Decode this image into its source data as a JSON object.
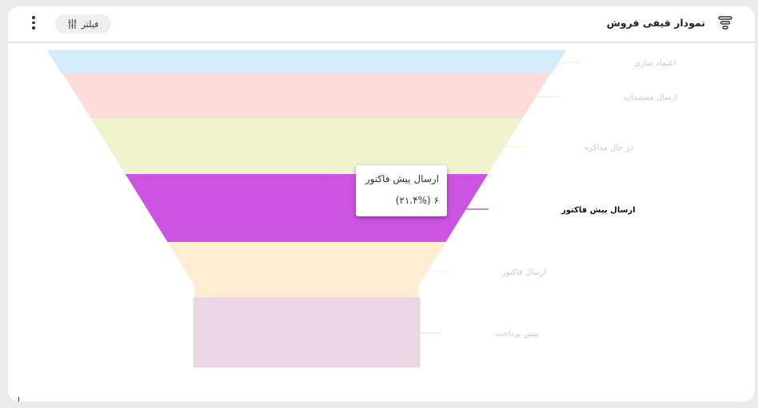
{
  "header": {
    "title": "نمودار قیفی فروش",
    "filter_label": "فیلتر",
    "title_icon": "funnel-icon",
    "filter_icon": "sliders-icon",
    "menu_icon": "more-vertical-icon"
  },
  "chart_data": {
    "type": "funnel",
    "categories": [
      "اعتماد سازی",
      "ارسال مستندات",
      "در حال مذاکره",
      "ارسال پیش فاکتور",
      "ارسال فاکتور",
      "پیش پرداخت"
    ],
    "colors": [
      "#d5ecfa",
      "#fddcda",
      "#f1f3cf",
      "#cb55e0",
      "#feecd3",
      "#ebd6e4"
    ],
    "highlighted": "ارسال پیش فاکتور",
    "tooltip": {
      "label": "ارسال پیش فاکتور",
      "value": 6,
      "percent": "21.4%",
      "text": "۶ (۲۱.۴%)"
    }
  }
}
